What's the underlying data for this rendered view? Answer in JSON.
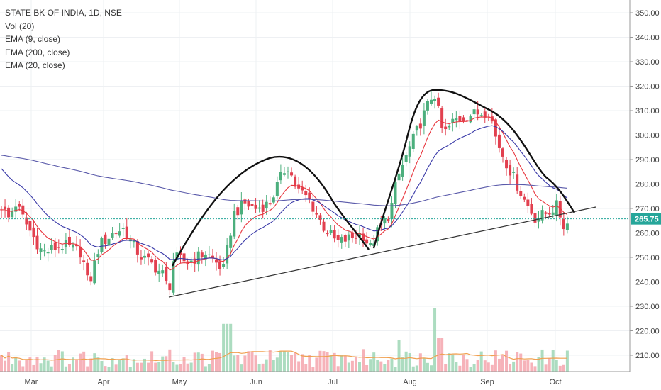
{
  "chart_data": {
    "type": "candlestick",
    "title": "STATE BK OF INDIA, 1D, NSE",
    "legend": [
      "Vol (20)",
      "EMA (9, close)",
      "EMA (200, close)",
      "EMA (20, close)"
    ],
    "y_ticks": [
      210,
      220,
      230,
      240,
      250,
      260,
      270,
      280,
      290,
      300,
      310,
      320,
      330,
      340,
      350
    ],
    "ylim": [
      204,
      354
    ],
    "x_ticks": [
      "Mar",
      "Apr",
      "May",
      "Jun",
      "Jul",
      "Aug",
      "Sep",
      "Oct"
    ],
    "last_price": "265.75",
    "last_price_value": 265.75,
    "colors": {
      "up": "#4caf7d",
      "down": "#e2404f",
      "up_vol": "#9dd6b5",
      "down_vol": "#f4a5ad",
      "ema9": "#e8363e",
      "ema20": "#3a3aa8",
      "ema200": "#5a5aaa",
      "vol_ma": "#f0a050",
      "price_line": "#26a69a",
      "trend": "#333333"
    },
    "annotations": "hand-drawn arcs over rallies and a rising trendline"
  }
}
